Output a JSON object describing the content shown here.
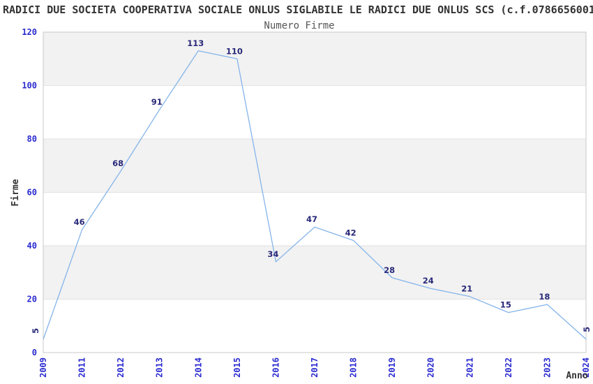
{
  "header": {
    "title": "RADICI DUE SOCIETA COOPERATIVA SOCIALE ONLUS SIGLABILE LE RADICI DUE ONLUS SCS (c.f.0786656001",
    "subtitle": "Numero Firme"
  },
  "chart_data": {
    "type": "line",
    "title": "Numero Firme",
    "categories": [
      "2009",
      "2011",
      "2012",
      "2013",
      "2014",
      "2015",
      "2016",
      "2017",
      "2018",
      "2019",
      "2020",
      "2021",
      "2022",
      "2023",
      "2024"
    ],
    "values": [
      5,
      46,
      68,
      91,
      113,
      110,
      34,
      47,
      42,
      28,
      24,
      21,
      15,
      18,
      5
    ],
    "xlabel": "Anno",
    "ylabel": "Firme",
    "ylim": [
      0,
      120
    ],
    "yticks": [
      0,
      20,
      40,
      60,
      80,
      100,
      120
    ],
    "grid": "alternating-horizontal-bands",
    "legend": "none",
    "data_labels": "shown-above-points, first and last rotated 90deg",
    "colors": {
      "line": "#84b4ea",
      "data_label": "#29297a",
      "tick_label": "#2a2ad0",
      "band": "#f2f2f2",
      "grid_line": "#e2e2e2",
      "axis_border": "#c8c8c8",
      "title": "#333333",
      "subtitle": "#555555"
    }
  }
}
